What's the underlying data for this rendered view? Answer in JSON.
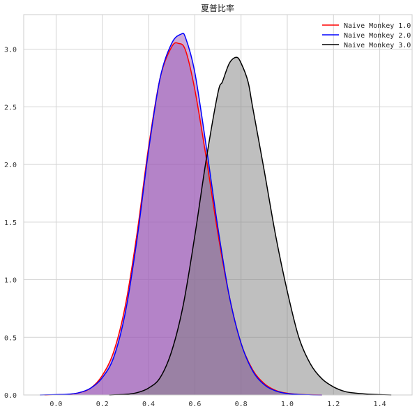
{
  "chart_data": {
    "type": "area",
    "title": "夏普比率",
    "xlabel": "",
    "ylabel": "",
    "xlim": [
      -0.14,
      1.54
    ],
    "ylim": [
      0,
      3.3
    ],
    "xticks": [
      0.0,
      0.2,
      0.4,
      0.6,
      0.8,
      1.0,
      1.2,
      1.4
    ],
    "xtick_labels": [
      "0.0",
      "0.2",
      "0.4",
      "0.6",
      "0.8",
      "1.0",
      "1.2",
      "1.4"
    ],
    "yticks": [
      0.0,
      0.5,
      1.0,
      1.5,
      2.0,
      2.5,
      3.0
    ],
    "ytick_labels": [
      "0.0",
      "0.5",
      "1.0",
      "1.5",
      "2.0",
      "2.5",
      "3.0"
    ],
    "grid": true,
    "legend_position": "top-right",
    "series": [
      {
        "name": "Naive Monkey 1.0",
        "color": "#ff0000",
        "fill_color": "#9b59b6",
        "x": [
          -0.05,
          0.05,
          0.1,
          0.15,
          0.2,
          0.25,
          0.3,
          0.35,
          0.4,
          0.45,
          0.5,
          0.53,
          0.56,
          0.6,
          0.65,
          0.7,
          0.75,
          0.8,
          0.85,
          0.9,
          0.95,
          1.0,
          1.05,
          1.1,
          1.15
        ],
        "y": [
          0.0,
          0.005,
          0.02,
          0.06,
          0.17,
          0.38,
          0.78,
          1.4,
          2.15,
          2.75,
          3.02,
          3.05,
          2.99,
          2.65,
          2.05,
          1.4,
          0.85,
          0.45,
          0.22,
          0.1,
          0.04,
          0.015,
          0.005,
          0.002,
          0.0
        ]
      },
      {
        "name": "Naive Monkey 2.0",
        "color": "#0000ff",
        "fill_color": "#9b59b6",
        "x": [
          -0.07,
          0.0,
          0.05,
          0.1,
          0.15,
          0.2,
          0.25,
          0.3,
          0.35,
          0.4,
          0.45,
          0.5,
          0.54,
          0.56,
          0.6,
          0.65,
          0.7,
          0.75,
          0.8,
          0.85,
          0.9,
          0.95,
          1.0,
          1.05,
          1.1,
          1.15
        ],
        "y": [
          0.0,
          0.003,
          0.006,
          0.02,
          0.06,
          0.15,
          0.33,
          0.72,
          1.35,
          2.12,
          2.75,
          3.05,
          3.13,
          3.1,
          2.8,
          2.15,
          1.45,
          0.85,
          0.45,
          0.21,
          0.09,
          0.035,
          0.012,
          0.004,
          0.001,
          0.0
        ]
      },
      {
        "name": "Naive Monkey 3.0",
        "color": "#000000",
        "fill_color": "#808080",
        "x": [
          0.23,
          0.3,
          0.35,
          0.4,
          0.45,
          0.5,
          0.55,
          0.6,
          0.65,
          0.7,
          0.72,
          0.75,
          0.78,
          0.8,
          0.83,
          0.85,
          0.9,
          0.95,
          1.0,
          1.05,
          1.1,
          1.15,
          1.2,
          1.25,
          1.3,
          1.35,
          1.4,
          1.45
        ],
        "y": [
          0.0,
          0.005,
          0.02,
          0.06,
          0.15,
          0.38,
          0.78,
          1.38,
          2.05,
          2.62,
          2.72,
          2.88,
          2.93,
          2.88,
          2.72,
          2.5,
          1.95,
          1.38,
          0.9,
          0.5,
          0.27,
          0.14,
          0.07,
          0.03,
          0.015,
          0.007,
          0.003,
          0.0
        ]
      }
    ]
  }
}
